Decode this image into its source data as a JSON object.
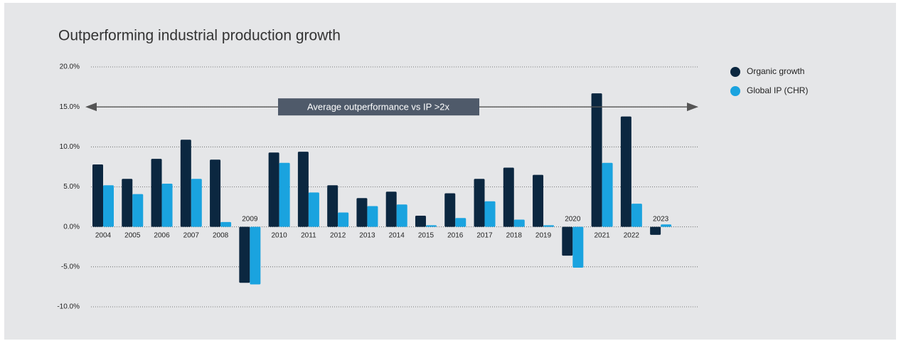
{
  "chart_data": {
    "type": "bar",
    "title": "Outperforming industrial production growth",
    "annotation": "Average outperformance vs IP >2x",
    "categories": [
      "2004",
      "2005",
      "2006",
      "2007",
      "2008",
      "2009",
      "2010",
      "2011",
      "2012",
      "2013",
      "2014",
      "2015",
      "2016",
      "2017",
      "2018",
      "2019",
      "2020",
      "2021",
      "2022",
      "2023"
    ],
    "series": [
      {
        "name": "Organic growth",
        "color": "#0b2740",
        "values": [
          7.8,
          6.0,
          8.5,
          10.9,
          8.4,
          -7.0,
          9.3,
          9.4,
          5.2,
          3.6,
          4.4,
          1.4,
          4.2,
          6.0,
          7.4,
          6.5,
          -3.6,
          16.7,
          13.8,
          -1.0
        ]
      },
      {
        "name": "Global IP (CHR)",
        "color": "#1aa3df",
        "values": [
          5.2,
          4.1,
          5.4,
          6.0,
          0.6,
          -7.2,
          8.0,
          4.3,
          1.8,
          2.6,
          2.8,
          0.2,
          1.1,
          3.2,
          0.9,
          0.2,
          -5.1,
          8.0,
          2.9,
          0.3
        ]
      }
    ],
    "ylim": [
      -10,
      20
    ],
    "yticks": [
      {
        "value": -10,
        "label": "-10.0%"
      },
      {
        "value": -5,
        "label": "-5.0%"
      },
      {
        "value": 0,
        "label": "0.0%"
      },
      {
        "value": 5,
        "label": "5.0%"
      },
      {
        "value": 10,
        "label": "10.0%"
      },
      {
        "value": 15,
        "label": "15.0%"
      },
      {
        "value": 20,
        "label": "20.0%"
      }
    ],
    "annotation_level": 15,
    "grid": true,
    "legend": "right"
  }
}
